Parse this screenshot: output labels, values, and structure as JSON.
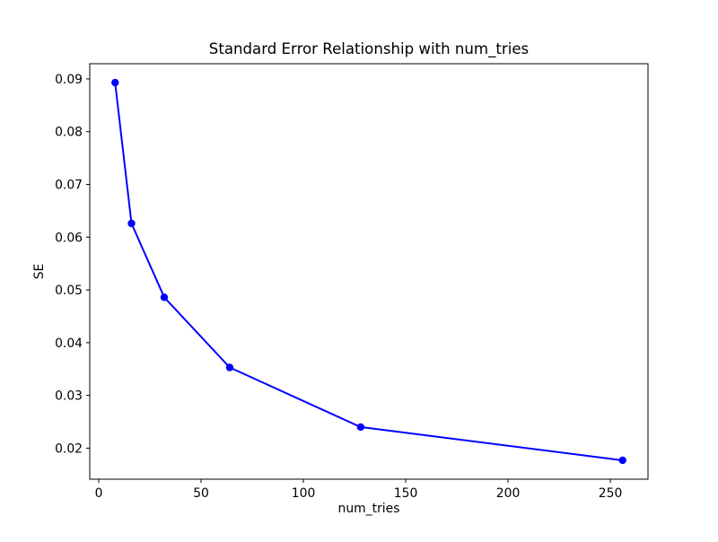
{
  "figure": {
    "background_color": "#ffffff",
    "text_color": "#000000",
    "spine_color": "#000000"
  },
  "chart_data": {
    "type": "line",
    "title": "Standard Error Relationship with num_tries",
    "xlabel": "num_tries",
    "ylabel": "SE",
    "x": [
      8,
      16,
      32,
      64,
      128,
      256
    ],
    "y": [
      0.0893,
      0.0626,
      0.0486,
      0.0353,
      0.024,
      0.0177
    ],
    "line_color": "#0000ff",
    "marker": "circle",
    "marker_color": "#0000ff",
    "xticks": [
      0,
      50,
      100,
      150,
      200,
      250
    ],
    "yticks": [
      0.02,
      0.03,
      0.04,
      0.05,
      0.06,
      0.07,
      0.08,
      0.09
    ],
    "xlim": [
      -4.4,
      268.4
    ],
    "ylim": [
      0.01412,
      0.09288
    ],
    "grid": false,
    "legend_position": "none"
  }
}
